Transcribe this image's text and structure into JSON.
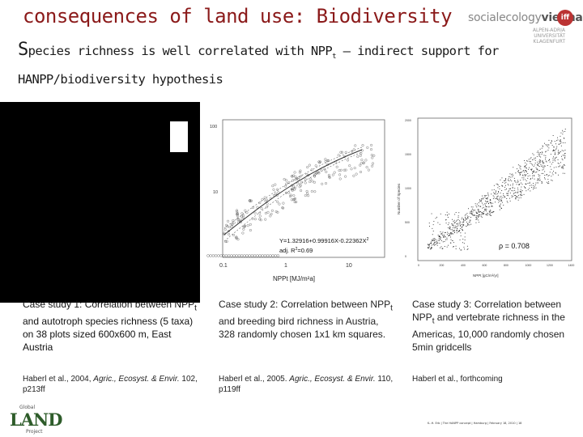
{
  "slide": {
    "title": "consequences of land use: Biodiversity",
    "subtitle_first_letter": "S",
    "subtitle_rest_line1": "pecies richness is well correlated with NPP",
    "subtitle_sub": "t",
    "subtitle_after_sub": " – indirect support for",
    "subtitle_line2": "HANPP/biodiversity hypothesis"
  },
  "logo_social_ecology": {
    "name_a": "socialecology",
    "name_b": "vienna",
    "uni_line1": "ALPEN-ADRIA",
    "uni_line2": "UNIVERSITÄT",
    "uni_line3": "KLAGENFURT",
    "badge": "iff"
  },
  "chart_case2": {
    "ytick_100": "100",
    "ytick_10": "10",
    "xtick_01": "0.1",
    "xtick_1": "1",
    "xtick_10": "10",
    "equation": "Y=1.32916+0.99916X-0.22362X",
    "eq_sup": "2",
    "r2_label": "adj. R",
    "r2_value": "=0.69",
    "xlabel": "NPPt [MJ/m²a]"
  },
  "chart_case3": {
    "ylabel": "Number of Species",
    "yticks": [
      "2000",
      "1500",
      "1000",
      "500",
      "0"
    ],
    "xticks": [
      "0",
      "200",
      "400",
      "600",
      "800",
      "1000",
      "1200",
      "1400"
    ],
    "xlabel": "NPPt [gC/m²/yr]",
    "rho": "ρ = 0.708"
  },
  "cases": [
    {
      "a": "Case study 1: Correlation between NPP",
      "sub": "t",
      "b": " and autotroph species richness (5 taxa) on 38 plots sized 600x600 m, East Austria"
    },
    {
      "a": "Case study 2: Correlation between NPP",
      "sub": "t",
      "b": " and breeding bird richness in Austria, 328 randomly chosen 1x1 km squares."
    },
    {
      "a": "Case study 3: Correlation between NPP",
      "sub": "t",
      "b": " and vertebrate richness in the Americas, 10,000 randomly chosen 5min gridcells"
    }
  ],
  "refs": [
    {
      "a": "Haberl et al., 2004, ",
      "journal": "Agric., Ecosyst. & Envir.",
      "b": " 102, p213ff"
    },
    {
      "a": "Haberl et al., 2005. ",
      "journal": "Agric., Ecosyst. & Envir.",
      "b": " 110, p119ff"
    },
    {
      "a": "Haberl et al., forthcoming",
      "journal": "",
      "b": ""
    }
  ],
  "logo_globalland": {
    "top": "Global",
    "main": "LAND",
    "bottom": "Project"
  },
  "footer": "K.-H. Erb | The HANPP concept | Hamburg | February 18, 2010 | 18"
}
